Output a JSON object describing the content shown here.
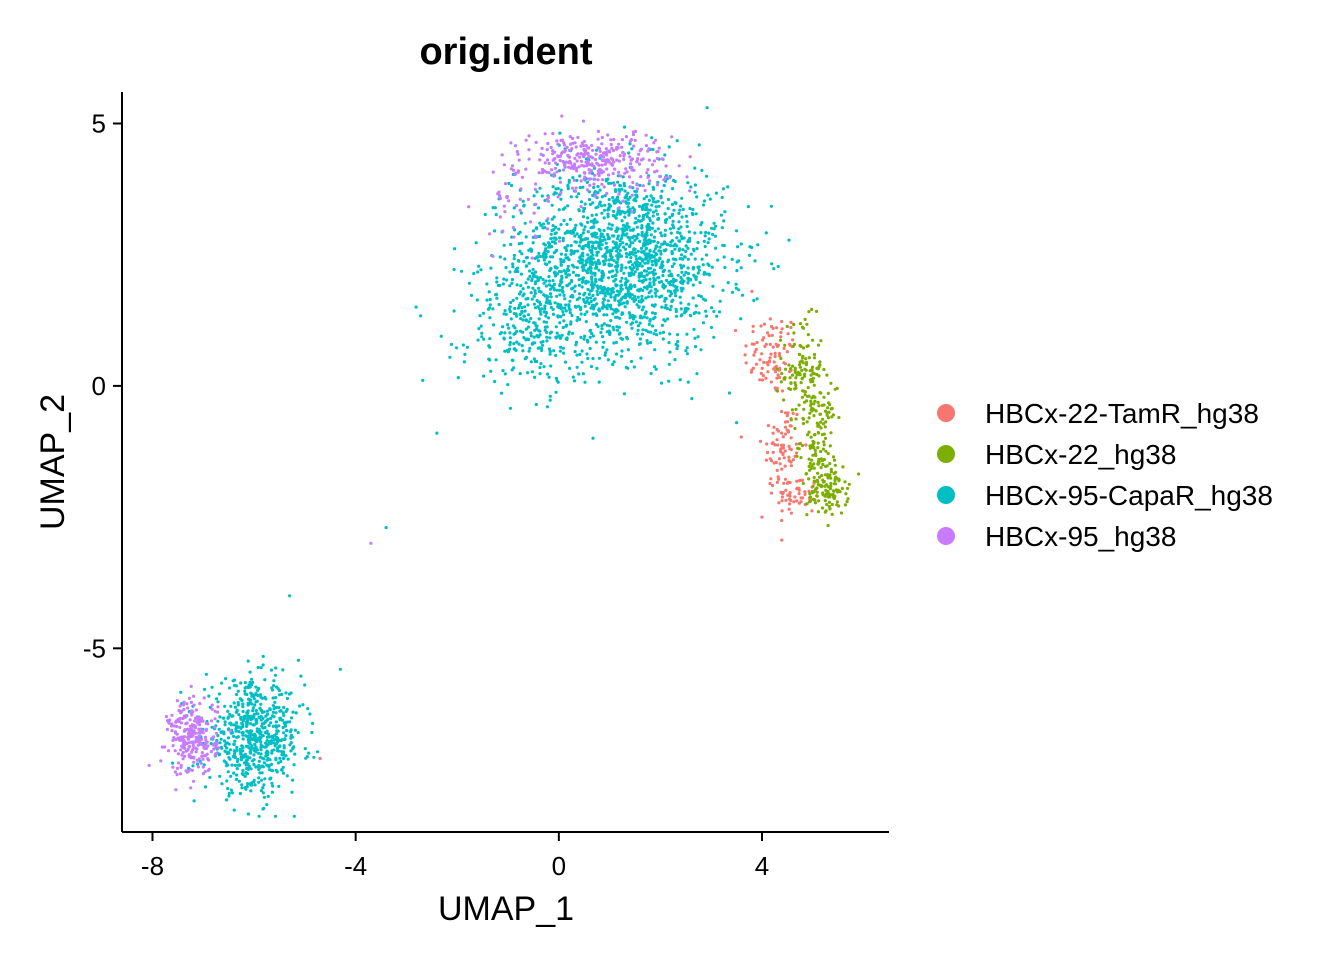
{
  "chart_data": {
    "type": "scatter",
    "title": "orig.ident",
    "xlabel": "UMAP_1",
    "ylabel": "UMAP_2",
    "xlim": [
      -8.6,
      6.5
    ],
    "ylim": [
      -8.5,
      5.6
    ],
    "x_ticks": [
      -8,
      -4,
      0,
      4
    ],
    "y_ticks": [
      -5,
      0,
      5
    ],
    "x_tick_labels": [
      "-8",
      "-4",
      "0",
      "4"
    ],
    "y_tick_labels": [
      "-5",
      "0",
      "5"
    ],
    "grid": false,
    "legend_position": "right",
    "series": [
      {
        "name": "HBCx-22-TamR_hg38",
        "color": "#F8766D",
        "clusters": [
          {
            "center": [
              4.2,
              0.6
            ],
            "spread": [
              0.35,
              0.5
            ],
            "n": 90
          },
          {
            "center": [
              4.4,
              -1.2
            ],
            "spread": [
              0.25,
              0.6
            ],
            "n": 80
          },
          {
            "center": [
              4.7,
              -2.1
            ],
            "spread": [
              0.25,
              0.25
            ],
            "n": 50
          }
        ],
        "points": [
          [
            -4.7,
            -7.1
          ],
          [
            4.0,
            -2.5
          ],
          [
            3.8,
            1.8
          ]
        ]
      },
      {
        "name": "HBCx-22_hg38",
        "color": "#7CAE00",
        "clusters": [
          {
            "center": [
              4.8,
              0.3
            ],
            "spread": [
              0.25,
              0.6
            ],
            "n": 120
          },
          {
            "center": [
              5.1,
              -1.0
            ],
            "spread": [
              0.22,
              0.6
            ],
            "n": 130
          },
          {
            "center": [
              5.3,
              -2.0
            ],
            "spread": [
              0.25,
              0.3
            ],
            "n": 110
          }
        ],
        "points": []
      },
      {
        "name": "HBCx-95-CapaR_hg38",
        "color": "#00BFC4",
        "clusters": [
          {
            "center": [
              1.2,
              2.4
            ],
            "spread": [
              1.3,
              1.1
            ],
            "n": 1700
          },
          {
            "center": [
              -0.5,
              1.2
            ],
            "spread": [
              0.9,
              0.8
            ],
            "n": 300
          },
          {
            "center": [
              -6.0,
              -6.7
            ],
            "spread": [
              0.6,
              0.65
            ],
            "n": 650
          }
        ],
        "points": [
          [
            -2.4,
            -0.9
          ],
          [
            -3.4,
            -2.7
          ],
          [
            3.5,
            -0.7
          ],
          [
            -5.3,
            -4.0
          ],
          [
            -4.3,
            -5.4
          ]
        ]
      },
      {
        "name": "HBCx-95_hg38",
        "color": "#C77CFF",
        "clusters": [
          {
            "center": [
              0.7,
              4.3
            ],
            "spread": [
              0.9,
              0.35
            ],
            "n": 320
          },
          {
            "center": [
              -0.8,
              3.3
            ],
            "spread": [
              0.5,
              0.6
            ],
            "n": 40
          },
          {
            "center": [
              -7.2,
              -6.7
            ],
            "spread": [
              0.3,
              0.45
            ],
            "n": 260
          }
        ],
        "points": [
          [
            -3.7,
            -3.0
          ]
        ]
      }
    ]
  }
}
